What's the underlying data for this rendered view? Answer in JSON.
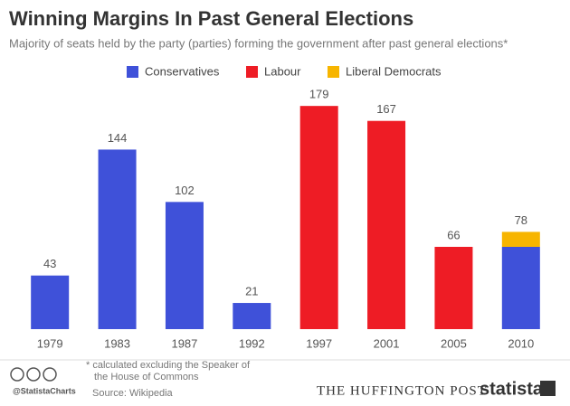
{
  "chart_data": {
    "type": "stacked_bar",
    "title": "Winning Margins In Past General Elections",
    "subtitle": "Majority of seats held by the party (parties) forming the government after past general elections*",
    "categories": [
      "1979",
      "1983",
      "1987",
      "1992",
      "1997",
      "2001",
      "2005",
      "2010"
    ],
    "series": [
      {
        "name": "Conservatives",
        "color": "#3f51d9",
        "values": [
          43,
          144,
          102,
          21,
          null,
          null,
          null,
          66
        ]
      },
      {
        "name": "Labour",
        "color": "#ee1c25",
        "values": [
          null,
          null,
          null,
          null,
          179,
          167,
          66,
          null
        ]
      },
      {
        "name": "Liberal Democrats",
        "color": "#f7b500",
        "values": [
          null,
          null,
          null,
          null,
          null,
          null,
          null,
          12
        ]
      }
    ],
    "totals": [
      43,
      144,
      102,
      21,
      179,
      167,
      66,
      78
    ],
    "ylim": [
      0,
      190
    ]
  },
  "footer": {
    "handle": "@StatistaCharts",
    "note": [
      "* calculated excluding the Speaker of",
      "the House of Commons"
    ],
    "source": "Source: Wikipedia",
    "partner": "THE HUFFINGTON POST",
    "brand": "statista"
  }
}
